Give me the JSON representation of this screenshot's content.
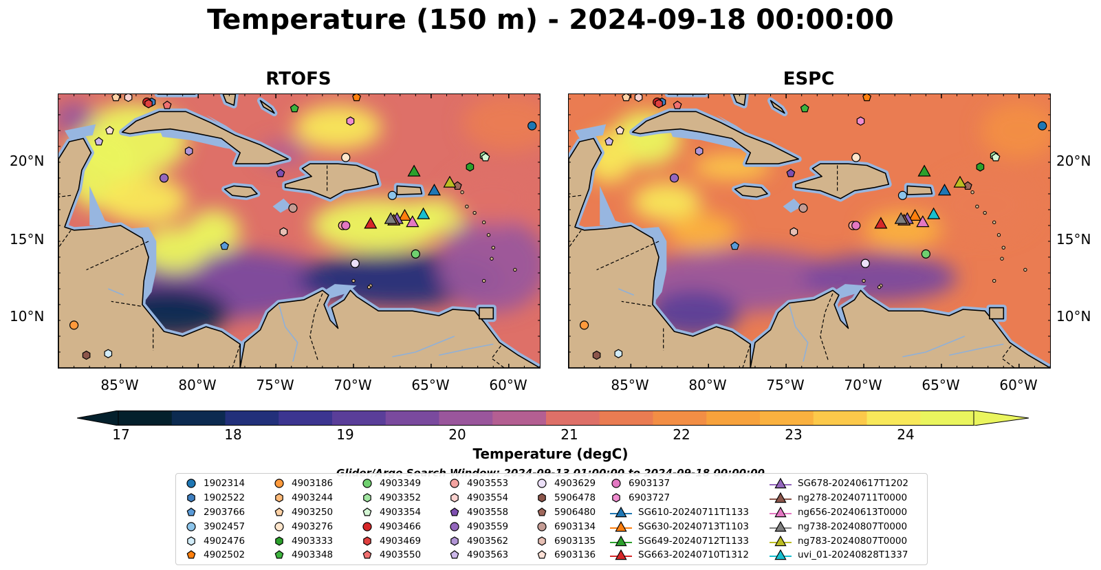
{
  "title": "Temperature (150 m) - 2024-09-18 00:00:00",
  "panels": [
    {
      "title": "RTOFS",
      "model": "RTOFS"
    },
    {
      "title": "ESPC",
      "model": "ESPC"
    }
  ],
  "axes": {
    "lon_range": [
      -89,
      -58
    ],
    "lat_range": [
      7,
      24.3
    ],
    "lon_ticks": [
      "85°W",
      "80°W",
      "75°W",
      "70°W",
      "65°W",
      "60°W"
    ],
    "lat_ticks": [
      "20°N",
      "15°N",
      "10°N"
    ]
  },
  "colorbar": {
    "label": "Temperature (degC)",
    "ticks": [
      "17",
      "18",
      "19",
      "20",
      "21",
      "22",
      "23",
      "24"
    ],
    "range": [
      16.5,
      24.5
    ],
    "extend": "both",
    "colormap": [
      "#04202c",
      "#0c2a50",
      "#22307a",
      "#3c3590",
      "#5a3e99",
      "#7a4a9e",
      "#9a569c",
      "#b45f92",
      "#cb6782",
      "#de7068",
      "#ea7c52",
      "#f28e45",
      "#f7a23c",
      "#fab13f",
      "#fcc94a",
      "#f8e85a",
      "#eaf55e"
    ]
  },
  "search_window": "Glider/Argo Search Window: 2024-09-13 01:00:00 to 2024-09-18 00:00:00",
  "legend": {
    "columns": [
      [
        {
          "label": "1902314",
          "marker": "circle",
          "color": "#1f77b4"
        },
        {
          "label": "1902522",
          "marker": "hexagon",
          "color": "#3f7fc0"
        },
        {
          "label": "2903766",
          "marker": "pentagon",
          "color": "#5a9bd8"
        },
        {
          "label": "3902457",
          "marker": "circle",
          "color": "#8cc4ea"
        },
        {
          "label": "4902476",
          "marker": "hexagon",
          "color": "#d2ecf8"
        },
        {
          "label": "4902502",
          "marker": "pentagon",
          "color": "#ff7f0e"
        }
      ],
      [
        {
          "label": "4903186",
          "marker": "circle",
          "color": "#ff9a3c"
        },
        {
          "label": "4903244",
          "marker": "hexagon",
          "color": "#ffba78"
        },
        {
          "label": "4903250",
          "marker": "pentagon",
          "color": "#ffd2a6"
        },
        {
          "label": "4903276",
          "marker": "circle",
          "color": "#ffe6cc"
        },
        {
          "label": "4903333",
          "marker": "hexagon",
          "color": "#2ca02c"
        },
        {
          "label": "4903348",
          "marker": "pentagon",
          "color": "#3fb43f"
        }
      ],
      [
        {
          "label": "4903349",
          "marker": "circle",
          "color": "#6fd06f"
        },
        {
          "label": "4903352",
          "marker": "hexagon",
          "color": "#a2e6a2"
        },
        {
          "label": "4903354",
          "marker": "pentagon",
          "color": "#d4f6d4"
        },
        {
          "label": "4903466",
          "marker": "circle",
          "color": "#d62728"
        },
        {
          "label": "4903469",
          "marker": "hexagon",
          "color": "#e0403f"
        },
        {
          "label": "4903550",
          "marker": "pentagon",
          "color": "#f07070"
        }
      ],
      [
        {
          "label": "4903553",
          "marker": "circle",
          "color": "#f4a3a0"
        },
        {
          "label": "4903554",
          "marker": "hexagon",
          "color": "#fad2cf"
        },
        {
          "label": "4903558",
          "marker": "pentagon",
          "color": "#7e4fb0"
        },
        {
          "label": "4903559",
          "marker": "circle",
          "color": "#9467bd"
        },
        {
          "label": "4903562",
          "marker": "hexagon",
          "color": "#b295d6"
        },
        {
          "label": "4903563",
          "marker": "pentagon",
          "color": "#cdb8ea"
        }
      ],
      [
        {
          "label": "4903629",
          "marker": "circle",
          "color": "#ece0f8"
        },
        {
          "label": "5906478",
          "marker": "hexagon",
          "color": "#8c564b"
        },
        {
          "label": "5906480",
          "marker": "pentagon",
          "color": "#a0685c"
        },
        {
          "label": "6903134",
          "marker": "circle",
          "color": "#c49c94"
        },
        {
          "label": "6903135",
          "marker": "hexagon",
          "color": "#e6bfb4"
        },
        {
          "label": "6903136",
          "marker": "pentagon",
          "color": "#fde0d6"
        }
      ],
      [
        {
          "label": "6903137",
          "marker": "circle",
          "color": "#e377c2"
        },
        {
          "label": "6903727",
          "marker": "hexagon",
          "color": "#f08ccf"
        },
        {
          "label": "SG610-20240711T1133",
          "marker": "triangle",
          "color": "#1f77b4"
        },
        {
          "label": "SG630-20240713T1103",
          "marker": "triangle",
          "color": "#ff7f0e"
        },
        {
          "label": "SG649-20240712T1133",
          "marker": "triangle",
          "color": "#2ca02c"
        },
        {
          "label": "SG663-20240710T1312",
          "marker": "triangle",
          "color": "#d62728"
        }
      ],
      [
        {
          "label": "SG678-20240617T1202",
          "marker": "triangle",
          "color": "#9467bd"
        },
        {
          "label": "ng278-20240711T0000",
          "marker": "triangle",
          "color": "#8c564b"
        },
        {
          "label": "ng656-20240613T0000",
          "marker": "triangle",
          "color": "#e377c2"
        },
        {
          "label": "ng738-20240807T0000",
          "marker": "triangle",
          "color": "#7f7f7f"
        },
        {
          "label": "ng783-20240807T0000",
          "marker": "triangle",
          "color": "#bcbd22"
        },
        {
          "label": "uvi_01-20240828T1337",
          "marker": "triangle",
          "color": "#17becf"
        }
      ]
    ]
  },
  "markers": [
    {
      "id": "1902314",
      "lon": -58.5,
      "lat": 22.3
    },
    {
      "id": "1902522",
      "lon": -83.0,
      "lat": 23.8
    },
    {
      "id": "2903766",
      "lon": -78.3,
      "lat": 14.7
    },
    {
      "id": "3902457",
      "lon": -67.5,
      "lat": 17.9
    },
    {
      "id": "4902476",
      "lon": -85.8,
      "lat": 7.9
    },
    {
      "id": "4902502",
      "lon": -69.8,
      "lat": 24.1
    },
    {
      "id": "4903186",
      "lon": -88.0,
      "lat": 9.7
    },
    {
      "id": "4903244",
      "lon": -61.6,
      "lat": 20.4
    },
    {
      "id": "4903250",
      "lon": -85.3,
      "lat": 24.1
    },
    {
      "id": "4903276",
      "lon": -70.5,
      "lat": 20.3
    },
    {
      "id": "4903333",
      "lon": -62.5,
      "lat": 19.7
    },
    {
      "id": "4903348",
      "lon": -73.8,
      "lat": 23.4
    },
    {
      "id": "4903349",
      "lon": -66.0,
      "lat": 14.2
    },
    {
      "id": "4903352",
      "lon": -61.6,
      "lat": 20.4
    },
    {
      "id": "4903354",
      "lon": -61.5,
      "lat": 20.3
    },
    {
      "id": "4903466",
      "lon": -83.3,
      "lat": 23.8
    },
    {
      "id": "4903469",
      "lon": -83.2,
      "lat": 23.7
    },
    {
      "id": "4903550",
      "lon": -82.0,
      "lat": 23.6
    },
    {
      "id": "4903553",
      "lon": -70.7,
      "lat": 16.0
    },
    {
      "id": "4903554",
      "lon": -84.5,
      "lat": 24.1
    },
    {
      "id": "4903558",
      "lon": -74.7,
      "lat": 19.3
    },
    {
      "id": "4903559",
      "lon": -82.2,
      "lat": 19.0
    },
    {
      "id": "4903562",
      "lon": -80.6,
      "lat": 20.7
    },
    {
      "id": "4903563",
      "lon": -86.4,
      "lat": 21.3
    },
    {
      "id": "4903629",
      "lon": -69.9,
      "lat": 13.6
    },
    {
      "id": "5906478",
      "lon": -87.2,
      "lat": 7.8
    },
    {
      "id": "5906480",
      "lon": -63.3,
      "lat": 18.5
    },
    {
      "id": "6903134",
      "lon": -73.9,
      "lat": 17.1
    },
    {
      "id": "6903135",
      "lon": -74.5,
      "lat": 15.6
    },
    {
      "id": "6903136",
      "lon": -85.7,
      "lat": 22.0
    },
    {
      "id": "6903137",
      "lon": -70.5,
      "lat": 16.0
    },
    {
      "id": "6903727",
      "lon": -70.2,
      "lat": 22.6
    },
    {
      "id": "SG610-20240711T1133",
      "lon": -64.8,
      "lat": 18.2
    },
    {
      "id": "SG630-20240713T1103",
      "lon": -66.7,
      "lat": 16.6
    },
    {
      "id": "SG649-20240712T1133",
      "lon": -66.1,
      "lat": 19.4
    },
    {
      "id": "SG663-20240710T1312",
      "lon": -68.9,
      "lat": 16.1
    },
    {
      "id": "SG678-20240617T1202",
      "lon": -67.2,
      "lat": 16.4
    },
    {
      "id": "ng278-20240711T0000",
      "lon": -67.4,
      "lat": 16.3
    },
    {
      "id": "ng656-20240613T0000",
      "lon": -66.2,
      "lat": 16.2
    },
    {
      "id": "ng738-20240807T0000",
      "lon": -67.6,
      "lat": 16.4
    },
    {
      "id": "ng783-20240807T0000",
      "lon": -63.8,
      "lat": 18.7
    },
    {
      "id": "uvi_01-20240828T1337",
      "lon": -65.5,
      "lat": 16.7
    }
  ]
}
